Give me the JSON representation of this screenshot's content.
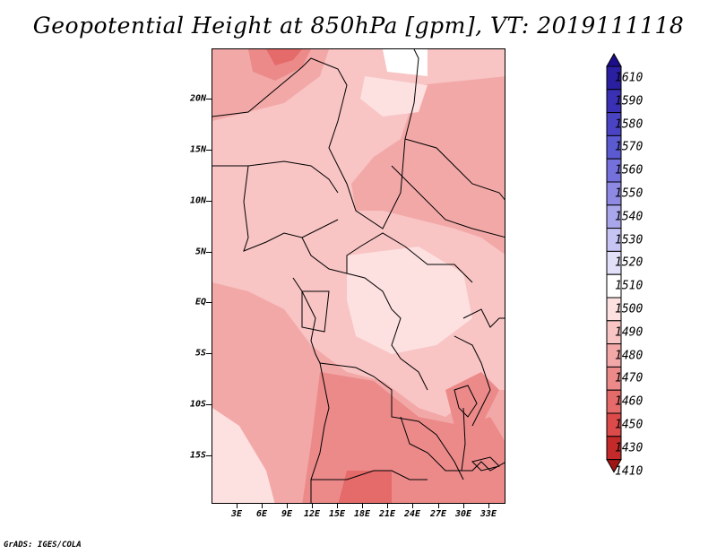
{
  "title": "Geopotential Height at 850hPa [gpm], VT: 2019111118",
  "credit": "GrADS: IGES/COLA",
  "map": {
    "lat_labels": [
      "20N",
      "15N",
      "10N",
      "5N",
      "EQ",
      "5S",
      "10S",
      "15S"
    ],
    "lon_labels": [
      "3E",
      "6E",
      "9E",
      "12E",
      "15E",
      "18E",
      "21E",
      "24E",
      "27E",
      "30E",
      "33E"
    ]
  },
  "colorbar": {
    "levels": [
      "1610",
      "1590",
      "1580",
      "1570",
      "1560",
      "1550",
      "1540",
      "1530",
      "1520",
      "1510",
      "1500",
      "1490",
      "1480",
      "1470",
      "1460",
      "1450",
      "1430",
      "1410"
    ],
    "colors": [
      "#1b0d8c",
      "#2a1fa0",
      "#3a30b3",
      "#4a44c4",
      "#5c5ad0",
      "#7571dc",
      "#8e8ae4",
      "#aaa6ec",
      "#c6c4f2",
      "#e2e0f8",
      "#ffffff",
      "#fde0e0",
      "#f8c4c4",
      "#f3a8a8",
      "#ec8a8a",
      "#e56a6a",
      "#dd4a4a",
      "#c52a2a",
      "#a11414"
    ]
  }
}
